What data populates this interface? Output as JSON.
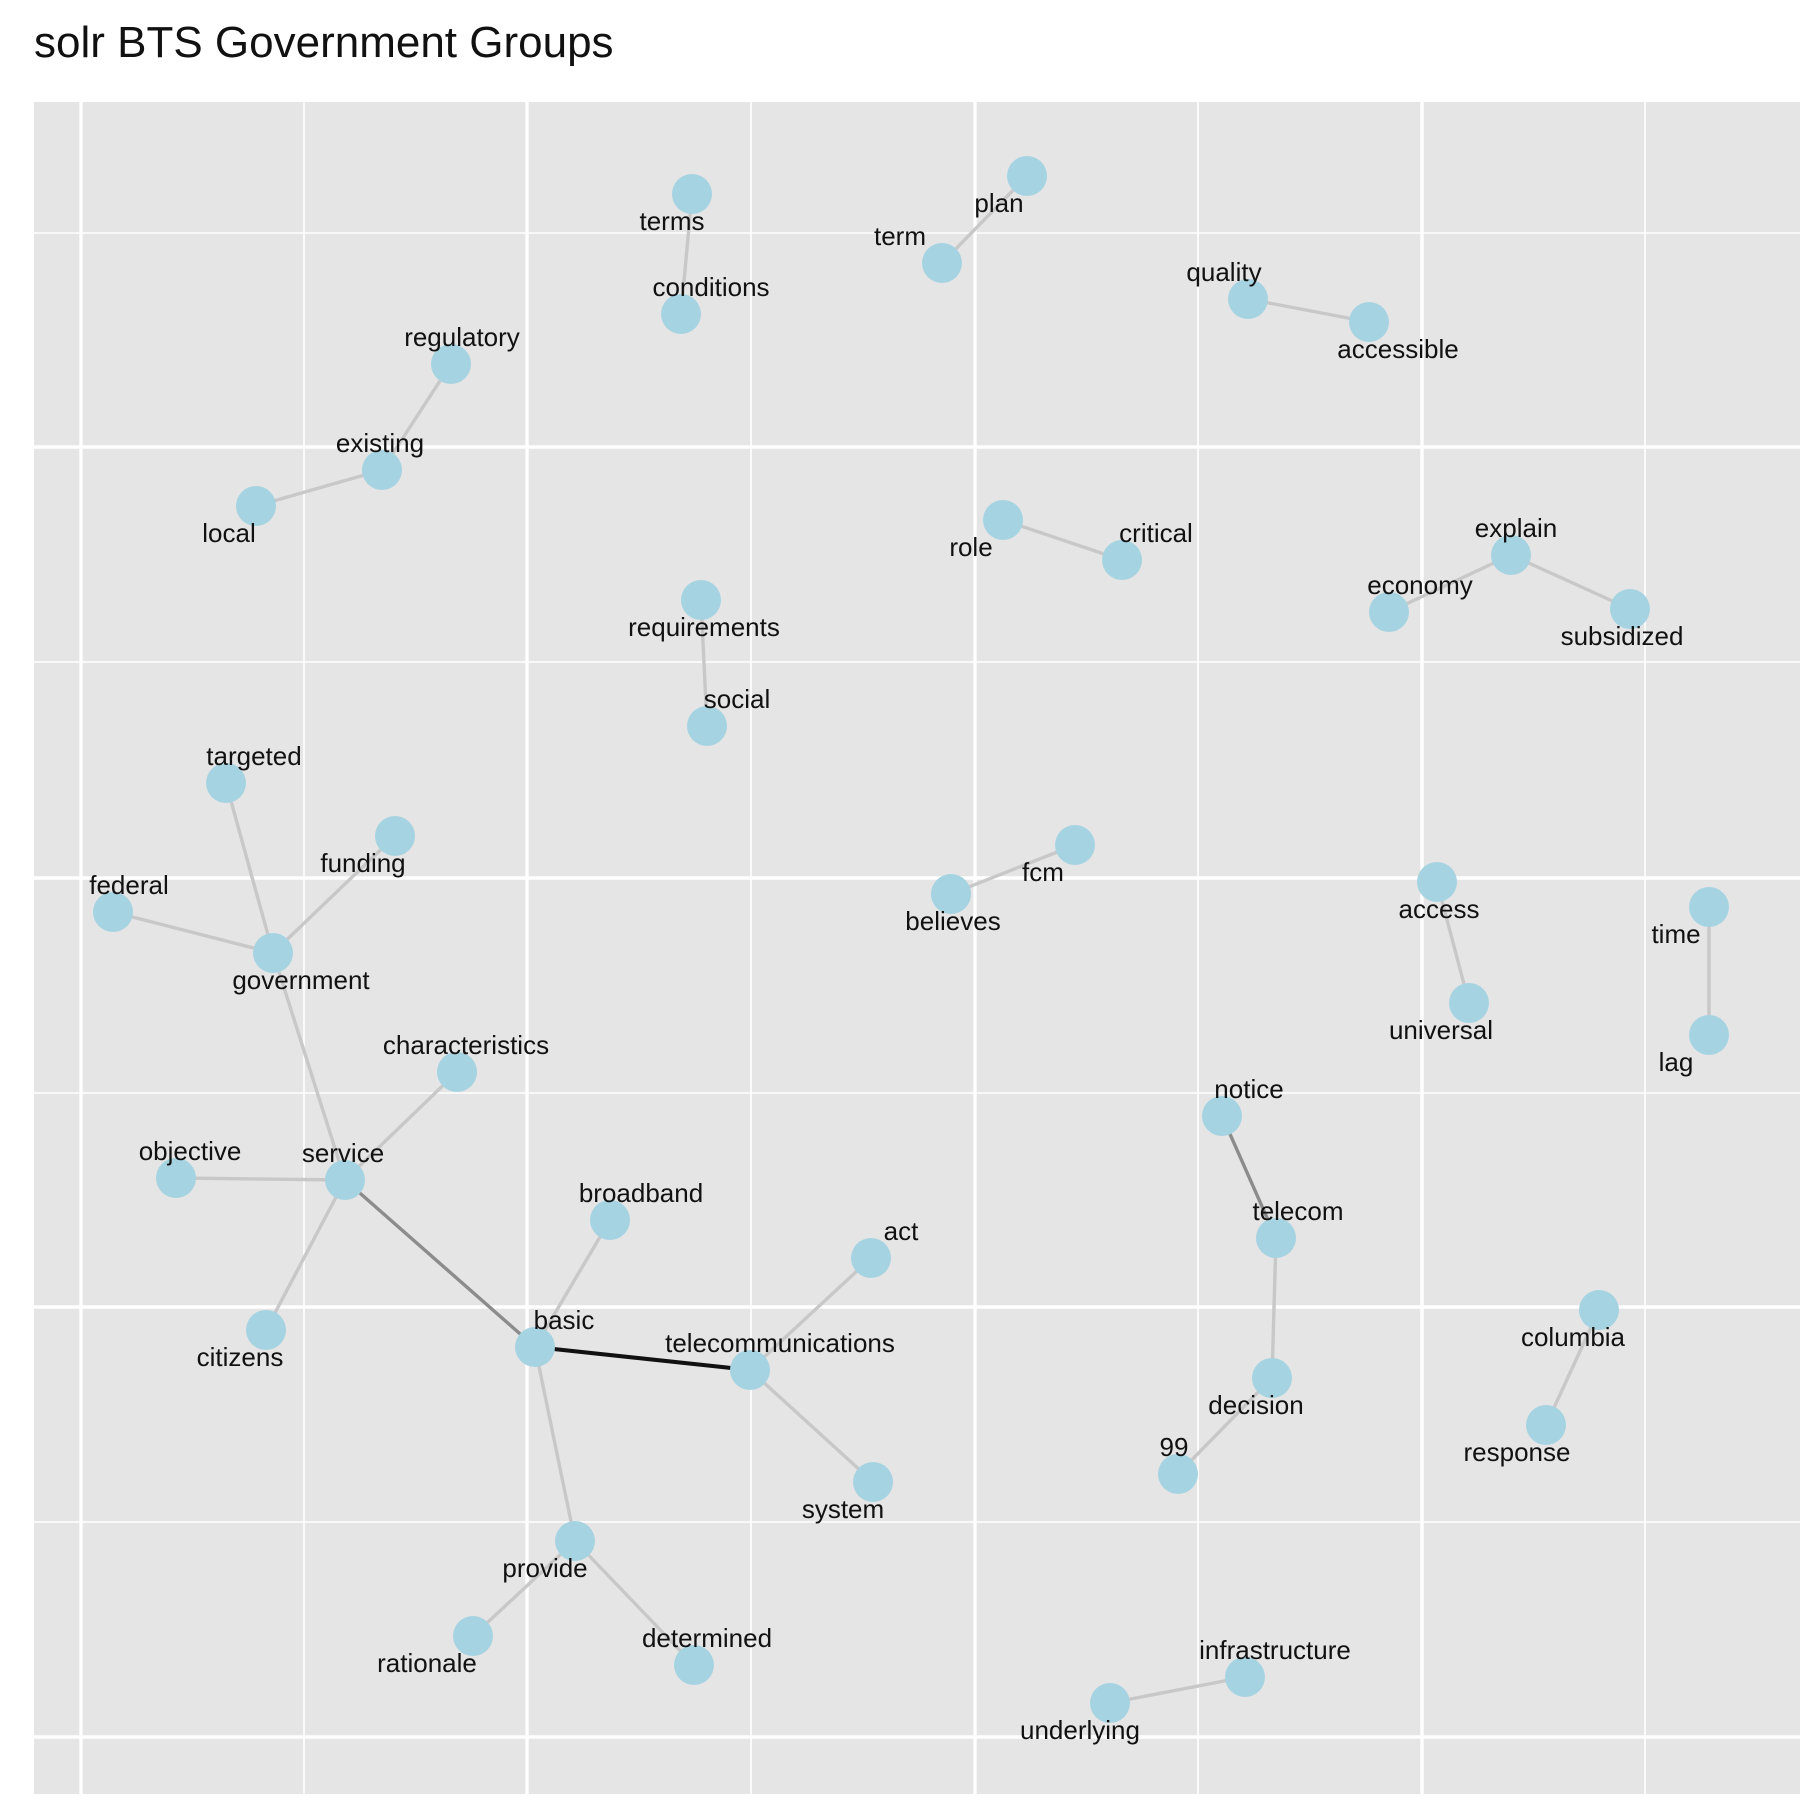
{
  "title": "solr BTS Government Groups",
  "colors": {
    "panel": "#e5e5e5",
    "grid_major": "#ffffff",
    "node": "#a6d3e1",
    "edge_light": "#c8c8c8",
    "edge_mid": "#8c8c8c",
    "edge_dark": "#111111",
    "label": "#111111"
  },
  "graph": {
    "nodes": [
      {
        "id": "terms",
        "label": "terms"
      },
      {
        "id": "conditions",
        "label": "conditions"
      },
      {
        "id": "plan",
        "label": "plan"
      },
      {
        "id": "term",
        "label": "term"
      },
      {
        "id": "quality",
        "label": "quality"
      },
      {
        "id": "accessible",
        "label": "accessible"
      },
      {
        "id": "regulatory",
        "label": "regulatory"
      },
      {
        "id": "existing",
        "label": "existing"
      },
      {
        "id": "local",
        "label": "local"
      },
      {
        "id": "role",
        "label": "role"
      },
      {
        "id": "critical",
        "label": "critical"
      },
      {
        "id": "explain",
        "label": "explain"
      },
      {
        "id": "economy",
        "label": "economy"
      },
      {
        "id": "subsidized",
        "label": "subsidized"
      },
      {
        "id": "requirements",
        "label": "requirements"
      },
      {
        "id": "social",
        "label": "social"
      },
      {
        "id": "targeted",
        "label": "targeted"
      },
      {
        "id": "funding",
        "label": "funding"
      },
      {
        "id": "federal",
        "label": "federal"
      },
      {
        "id": "government",
        "label": "government"
      },
      {
        "id": "fcm",
        "label": "fcm"
      },
      {
        "id": "believes",
        "label": "believes"
      },
      {
        "id": "access",
        "label": "access"
      },
      {
        "id": "universal",
        "label": "universal"
      },
      {
        "id": "time",
        "label": "time"
      },
      {
        "id": "lag",
        "label": "lag"
      },
      {
        "id": "characteristics",
        "label": "characteristics"
      },
      {
        "id": "objective",
        "label": "objective"
      },
      {
        "id": "service",
        "label": "service"
      },
      {
        "id": "citizens",
        "label": "citizens"
      },
      {
        "id": "broadband",
        "label": "broadband"
      },
      {
        "id": "basic",
        "label": "basic"
      },
      {
        "id": "act",
        "label": "act"
      },
      {
        "id": "telecommunications",
        "label": "telecommunications"
      },
      {
        "id": "system",
        "label": "system"
      },
      {
        "id": "provide",
        "label": "provide"
      },
      {
        "id": "rationale",
        "label": "rationale"
      },
      {
        "id": "determined",
        "label": "determined"
      },
      {
        "id": "notice",
        "label": "notice"
      },
      {
        "id": "telecom",
        "label": "telecom"
      },
      {
        "id": "decision",
        "label": "decision"
      },
      {
        "id": "99",
        "label": "99"
      },
      {
        "id": "columbia",
        "label": "columbia"
      },
      {
        "id": "response",
        "label": "response"
      },
      {
        "id": "infrastructure",
        "label": "infrastructure"
      },
      {
        "id": "underlying",
        "label": "underlying"
      }
    ],
    "edges": [
      {
        "source": "terms",
        "target": "conditions",
        "weight": 1
      },
      {
        "source": "plan",
        "target": "term",
        "weight": 1
      },
      {
        "source": "quality",
        "target": "accessible",
        "weight": 1
      },
      {
        "source": "regulatory",
        "target": "existing",
        "weight": 1
      },
      {
        "source": "existing",
        "target": "local",
        "weight": 1
      },
      {
        "source": "role",
        "target": "critical",
        "weight": 1
      },
      {
        "source": "explain",
        "target": "economy",
        "weight": 1
      },
      {
        "source": "explain",
        "target": "subsidized",
        "weight": 1
      },
      {
        "source": "requirements",
        "target": "social",
        "weight": 1
      },
      {
        "source": "targeted",
        "target": "government",
        "weight": 1
      },
      {
        "source": "funding",
        "target": "government",
        "weight": 1
      },
      {
        "source": "federal",
        "target": "government",
        "weight": 1
      },
      {
        "source": "government",
        "target": "service",
        "weight": 1
      },
      {
        "source": "fcm",
        "target": "believes",
        "weight": 1
      },
      {
        "source": "access",
        "target": "universal",
        "weight": 1
      },
      {
        "source": "time",
        "target": "lag",
        "weight": 1
      },
      {
        "source": "characteristics",
        "target": "service",
        "weight": 1
      },
      {
        "source": "objective",
        "target": "service",
        "weight": 1
      },
      {
        "source": "service",
        "target": "citizens",
        "weight": 1
      },
      {
        "source": "service",
        "target": "basic",
        "weight": 2
      },
      {
        "source": "broadband",
        "target": "basic",
        "weight": 1
      },
      {
        "source": "basic",
        "target": "telecommunications",
        "weight": 3
      },
      {
        "source": "act",
        "target": "telecommunications",
        "weight": 1
      },
      {
        "source": "telecommunications",
        "target": "system",
        "weight": 1
      },
      {
        "source": "basic",
        "target": "provide",
        "weight": 1
      },
      {
        "source": "provide",
        "target": "rationale",
        "weight": 1
      },
      {
        "source": "provide",
        "target": "determined",
        "weight": 1
      },
      {
        "source": "notice",
        "target": "telecom",
        "weight": 2
      },
      {
        "source": "telecom",
        "target": "decision",
        "weight": 1
      },
      {
        "source": "decision",
        "target": "99",
        "weight": 1
      },
      {
        "source": "columbia",
        "target": "response",
        "weight": 1
      },
      {
        "source": "infrastructure",
        "target": "underlying",
        "weight": 1
      }
    ]
  }
}
